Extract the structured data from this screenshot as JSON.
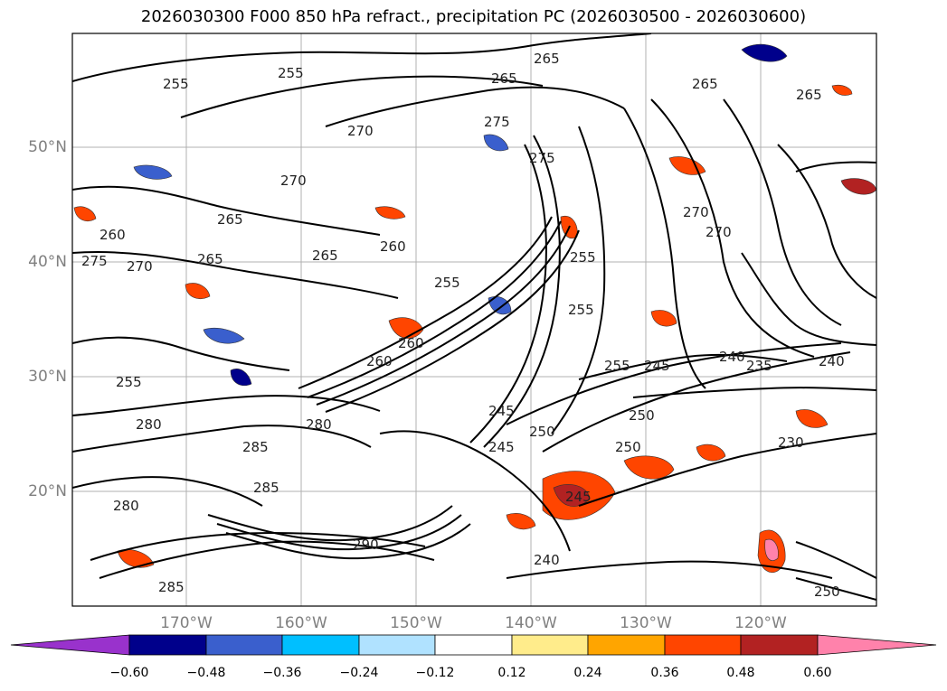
{
  "title": "2026030300 F000 850 hPa refract., precipitation PC (2026030500 - 2026030600)",
  "lat_labels": [
    "50°N",
    "40°N",
    "30°N",
    "20°N"
  ],
  "lon_labels": [
    "170°W",
    "160°W",
    "150°W",
    "140°W",
    "130°W",
    "120°W"
  ],
  "contour_labels": [
    "255",
    "255",
    "265",
    "270",
    "265",
    "270",
    "265",
    "260",
    "265",
    "265",
    "275",
    "270",
    "260",
    "255",
    "255",
    "255",
    "255",
    "245",
    "250",
    "250",
    "245",
    "240",
    "235",
    "240",
    "230",
    "265",
    "270",
    "270",
    "255",
    "260",
    "280",
    "285",
    "285",
    "280",
    "290",
    "285",
    "280",
    "245",
    "240",
    "245",
    "250",
    "260",
    "250",
    "265",
    "275",
    "275"
  ],
  "colorbar": {
    "ticks": [
      "−0.60",
      "−0.48",
      "−0.36",
      "−0.24",
      "−0.12",
      "0.12",
      "0.24",
      "0.36",
      "0.48",
      "0.60"
    ],
    "colors": [
      "#9932cc",
      "#00008b",
      "#3a5fcd",
      "#00bfff",
      "#b0e2ff",
      "#ffffff",
      "#ffec8b",
      "#ffa500",
      "#ff4500",
      "#b22222",
      "#ff82ab"
    ]
  }
}
